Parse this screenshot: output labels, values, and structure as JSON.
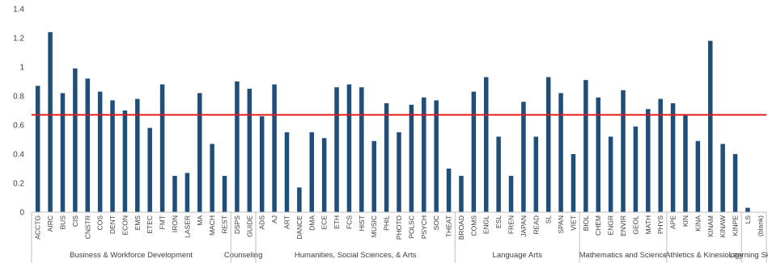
{
  "chart_data": {
    "type": "bar",
    "ylim": [
      0,
      1.4
    ],
    "yticks": [
      "0",
      "0.2",
      "0.4",
      "0.6",
      "0.8",
      "1",
      "1.2",
      "1.4"
    ],
    "grid": false,
    "bar_color": "#1f4e79",
    "reference_line": {
      "value": 0.67,
      "color": "#e31a1c"
    },
    "categories": [
      "ACCTG",
      "AIRC",
      "BUS",
      "CIS",
      "CNSTR",
      "COS",
      "DENT",
      "ECON",
      "EMS",
      "ETEC",
      "FMT",
      "IRON",
      "LASER",
      "MA",
      "MACH",
      "REST",
      "DSPS",
      "GUIDE",
      "ADS",
      "AJ",
      "ART",
      "DANCE",
      "DMA",
      "ECE",
      "ETH",
      "FCS",
      "HIST",
      "MUSIC",
      "PHIL",
      "PHOTO",
      "POLSC",
      "PSYCH",
      "SOC",
      "THEAT",
      "BROAD",
      "COMS",
      "ENGL",
      "ESL",
      "FREN",
      "JAPAN",
      "READ",
      "SL",
      "SPAN",
      "VIET",
      "BIOL",
      "CHEM",
      "ENGR",
      "ENVIR",
      "GEOL",
      "MATH",
      "PHYS",
      "APE",
      "KIN",
      "KINA",
      "KINAM",
      "KINAW",
      "KINPE",
      "LS",
      "(blank)"
    ],
    "values": [
      0.87,
      1.24,
      0.82,
      0.99,
      0.92,
      0.83,
      0.77,
      0.7,
      0.78,
      0.58,
      0.88,
      0.25,
      0.27,
      0.82,
      0.47,
      0.25,
      0.9,
      0.85,
      0.66,
      0.88,
      0.55,
      0.17,
      0.55,
      0.51,
      0.86,
      0.88,
      0.86,
      0.49,
      0.75,
      0.55,
      0.74,
      0.79,
      0.77,
      0.3,
      0.25,
      0.83,
      0.93,
      0.52,
      0.25,
      0.76,
      0.52,
      0.93,
      0.82,
      0.4,
      0.91,
      0.79,
      0.52,
      0.84,
      0.59,
      0.71,
      0.78,
      0.75,
      0.67,
      0.49,
      1.18,
      0.47,
      0.4,
      0.03,
      0
    ],
    "groups": [
      {
        "label": "Business & Workforce Development",
        "start": 0,
        "count": 16
      },
      {
        "label": "Counseling",
        "start": 16,
        "count": 2
      },
      {
        "label": "Humanities, Social Sciences, & Arts",
        "start": 18,
        "count": 16
      },
      {
        "label": "Language Arts",
        "start": 34,
        "count": 10
      },
      {
        "label": "Mathematics and Science",
        "start": 44,
        "count": 7
      },
      {
        "label": "Athletics & Kinesiology",
        "start": 51,
        "count": 6
      },
      {
        "label": "Learning Skills",
        "start": 57,
        "count": 2
      }
    ]
  }
}
